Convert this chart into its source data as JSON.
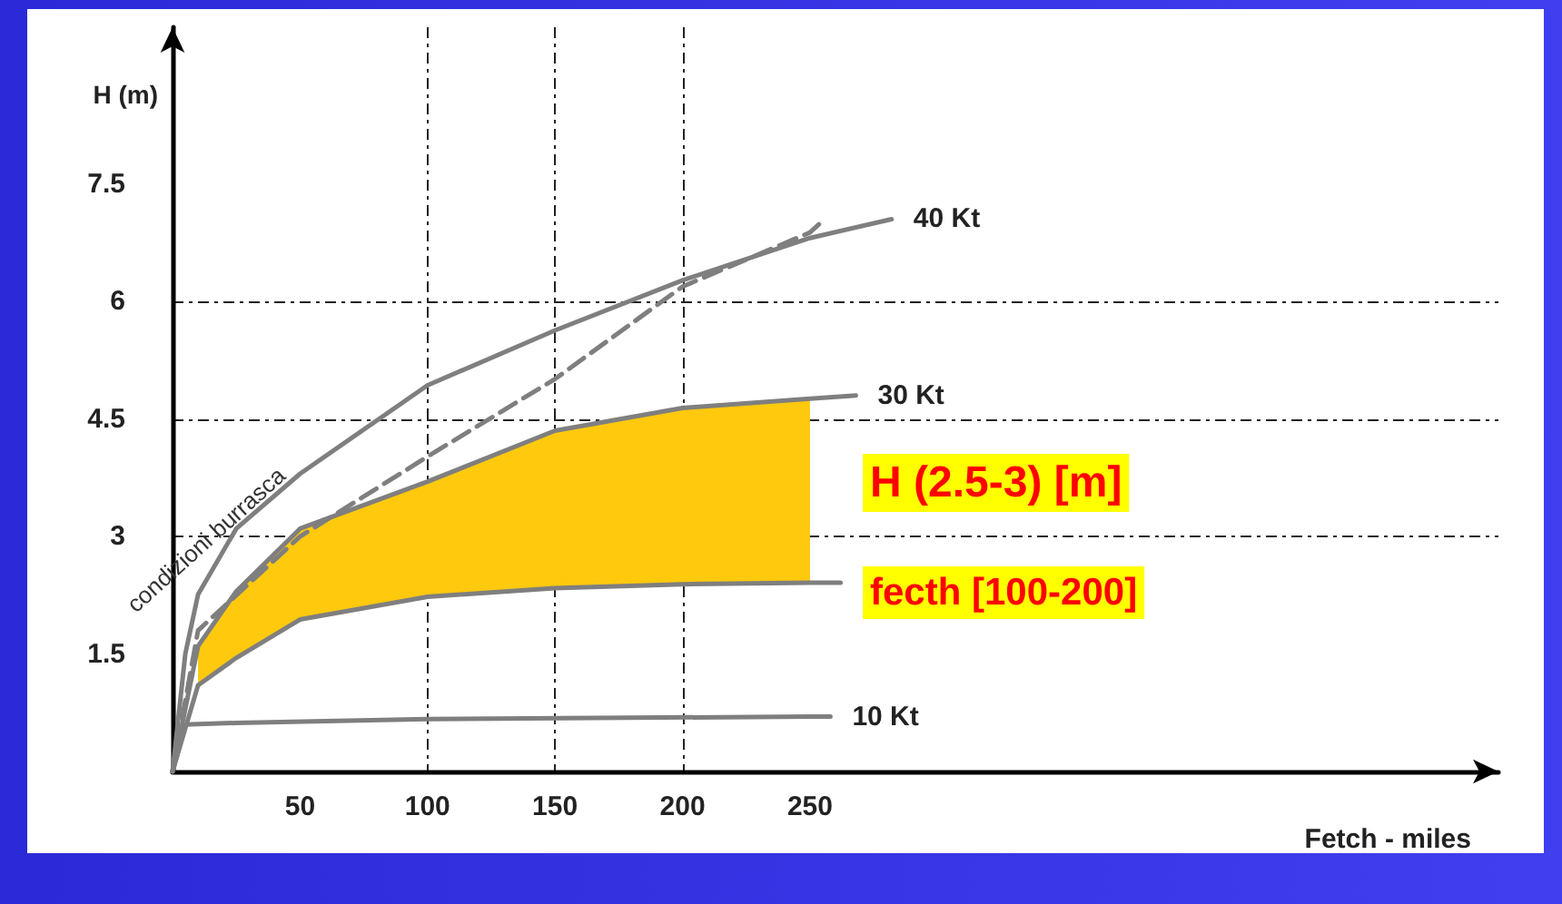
{
  "chart_data": {
    "type": "line",
    "xlabel": "Fetch - miles",
    "ylabel": "H (m)",
    "xlim": [
      0,
      520
    ],
    "ylim": [
      0,
      9.5
    ],
    "xticks": [
      50,
      100,
      150,
      200,
      250
    ],
    "yticks": [
      1.5,
      3,
      4.5,
      6,
      7.5
    ],
    "grid": true,
    "legend": false,
    "marker": "none",
    "series": [
      {
        "name": "40 Kt",
        "color": "#7f7f7f",
        "x": [
          0,
          5,
          10,
          25,
          50,
          100,
          150,
          200,
          250,
          282
        ],
        "values": [
          0,
          1.5,
          2.26,
          3.1,
          3.8,
          4.93,
          5.63,
          6.27,
          6.81,
          7.05
        ]
      },
      {
        "name": "30 Kt",
        "color": "#7f7f7f",
        "x": [
          0,
          10,
          25,
          50,
          100,
          150,
          200,
          250,
          268
        ],
        "values": [
          0,
          1.6,
          2.3,
          3.1,
          3.7,
          4.35,
          4.64,
          4.76,
          4.8
        ],
        "lower": [
          null,
          1.1,
          1.45,
          1.94,
          2.23,
          2.34,
          2.39,
          2.41,
          null
        ],
        "upper": [
          null,
          1.6,
          2.3,
          3.1,
          3.7,
          4.35,
          4.64,
          4.76,
          null
        ]
      },
      {
        "color": "#7f7f7f",
        "x": [
          0,
          10,
          25,
          50,
          100,
          150,
          200,
          250,
          262
        ],
        "values": [
          0,
          1.1,
          1.45,
          1.94,
          2.23,
          2.34,
          2.39,
          2.41,
          2.41
        ]
      },
      {
        "name": "10 Kt",
        "color": "#7f7f7f",
        "x": [
          0,
          5,
          25,
          100,
          250,
          258
        ],
        "values": [
          0,
          0.6,
          0.62,
          0.67,
          0.7,
          0.7
        ]
      },
      {
        "name": "condizioni burrasca",
        "color": "#7f7f7f",
        "line_style": "dashed",
        "x": [
          0,
          10,
          50,
          100,
          150,
          200,
          250,
          254
        ],
        "values": [
          0,
          1.8,
          3.0,
          4.02,
          5.01,
          6.19,
          6.88,
          7.0
        ]
      }
    ],
    "annotations": [
      "H (2.5-3) [m]",
      "fecth [100-200]"
    ]
  }
}
